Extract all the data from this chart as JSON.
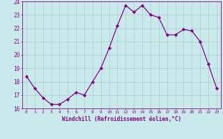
{
  "x": [
    0,
    1,
    2,
    3,
    4,
    5,
    6,
    7,
    8,
    9,
    10,
    11,
    12,
    13,
    14,
    15,
    16,
    17,
    18,
    19,
    20,
    21,
    22,
    23
  ],
  "y": [
    18.4,
    17.5,
    16.8,
    16.3,
    16.3,
    16.7,
    17.2,
    17.0,
    18.0,
    19.0,
    20.5,
    22.2,
    23.7,
    23.2,
    23.7,
    23.0,
    22.8,
    21.5,
    21.5,
    21.9,
    21.8,
    21.0,
    19.3,
    17.5
  ],
  "line_color": "#880088",
  "marker": "D",
  "marker_size": 2.2,
  "bg_color": "#c8eaea",
  "grid_color": "#aacccc",
  "xlabel": "Windchill (Refroidissement éolien,°C)",
  "xlabel_color": "#880088",
  "tick_color": "#880088",
  "ylim": [
    16,
    24
  ],
  "xlim": [
    -0.5,
    23.5
  ],
  "yticks": [
    16,
    17,
    18,
    19,
    20,
    21,
    22,
    23,
    24
  ],
  "xticks": [
    0,
    1,
    2,
    3,
    4,
    5,
    6,
    7,
    8,
    9,
    10,
    11,
    12,
    13,
    14,
    15,
    16,
    17,
    18,
    19,
    20,
    21,
    22,
    23
  ]
}
